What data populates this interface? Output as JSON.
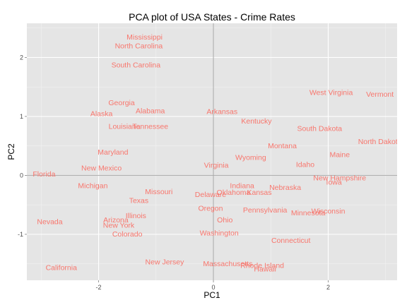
{
  "chart_data": {
    "type": "scatter",
    "title": "PCA plot of USA States - Crime Rates",
    "xlabel": "PC1",
    "ylabel": "PC2",
    "xlim": [
      -3.25,
      3.2
    ],
    "ylim": [
      -1.78,
      2.58
    ],
    "x_ticks": [
      -2,
      0,
      2
    ],
    "y_ticks": [
      -1,
      0,
      1,
      2
    ],
    "x_tick_labels": [
      "-2",
      "0",
      "2"
    ],
    "y_tick_labels": [
      "-1",
      "0",
      "1",
      "2"
    ],
    "grid": true,
    "reference_lines": {
      "x": 0,
      "y": 0
    },
    "label_color": "#f8766d",
    "panel_color": "#e5e5e5",
    "points": [
      {
        "label": "Mississippi",
        "x": -1.2,
        "y": 2.35
      },
      {
        "label": "North Carolina",
        "x": -1.3,
        "y": 2.2
      },
      {
        "label": "South Carolina",
        "x": -1.35,
        "y": 1.88
      },
      {
        "label": "Georgia",
        "x": -1.6,
        "y": 1.24
      },
      {
        "label": "Alabama",
        "x": -1.1,
        "y": 1.1
      },
      {
        "label": "Alaska",
        "x": -1.95,
        "y": 1.05
      },
      {
        "label": "Arkansas",
        "x": 0.15,
        "y": 1.09
      },
      {
        "label": "Louisiana",
        "x": -1.55,
        "y": 0.84
      },
      {
        "label": "Tennessee",
        "x": -1.1,
        "y": 0.84
      },
      {
        "label": "Kentucky",
        "x": 0.75,
        "y": 0.93
      },
      {
        "label": "West Virginia",
        "x": 2.05,
        "y": 1.41
      },
      {
        "label": "Vermont",
        "x": 2.9,
        "y": 1.38
      },
      {
        "label": "South Dakota",
        "x": 1.85,
        "y": 0.8
      },
      {
        "label": "North Dakota",
        "x": 2.9,
        "y": 0.58
      },
      {
        "label": "Montana",
        "x": 1.2,
        "y": 0.51
      },
      {
        "label": "Maine",
        "x": 2.2,
        "y": 0.36
      },
      {
        "label": "Maryland",
        "x": -1.75,
        "y": 0.4
      },
      {
        "label": "Wyoming",
        "x": 0.65,
        "y": 0.31
      },
      {
        "label": "Idaho",
        "x": 1.6,
        "y": 0.19
      },
      {
        "label": "Virginia",
        "x": 0.05,
        "y": 0.18
      },
      {
        "label": "New Mexico",
        "x": -1.95,
        "y": 0.13
      },
      {
        "label": "Florida",
        "x": -2.95,
        "y": 0.03
      },
      {
        "label": "New Hampshire",
        "x": 2.2,
        "y": -0.04
      },
      {
        "label": "Iowa",
        "x": 2.1,
        "y": -0.11
      },
      {
        "label": "Michigan",
        "x": -2.1,
        "y": -0.17
      },
      {
        "label": "Indiana",
        "x": 0.5,
        "y": -0.17
      },
      {
        "label": "Nebraska",
        "x": 1.25,
        "y": -0.2
      },
      {
        "label": "Missouri",
        "x": -0.95,
        "y": -0.27
      },
      {
        "label": "Oklahoma",
        "x": 0.35,
        "y": -0.28
      },
      {
        "label": "Kansas",
        "x": 0.8,
        "y": -0.28
      },
      {
        "label": "Delaware",
        "x": -0.05,
        "y": -0.32
      },
      {
        "label": "Texas",
        "x": -1.3,
        "y": -0.42
      },
      {
        "label": "Oregon",
        "x": -0.05,
        "y": -0.55
      },
      {
        "label": "Pennsylvania",
        "x": 0.9,
        "y": -0.58
      },
      {
        "label": "Wisconsin",
        "x": 2.0,
        "y": -0.6
      },
      {
        "label": "Minnesota",
        "x": 1.65,
        "y": -0.63
      },
      {
        "label": "Illinois",
        "x": -1.35,
        "y": -0.68
      },
      {
        "label": "Arizona",
        "x": -1.7,
        "y": -0.75
      },
      {
        "label": "Ohio",
        "x": 0.2,
        "y": -0.75
      },
      {
        "label": "Nevada",
        "x": -2.85,
        "y": -0.78
      },
      {
        "label": "New York",
        "x": -1.65,
        "y": -0.84
      },
      {
        "label": "Colorado",
        "x": -1.5,
        "y": -0.99
      },
      {
        "label": "Washington",
        "x": 0.1,
        "y": -0.97
      },
      {
        "label": "Connecticut",
        "x": 1.35,
        "y": -1.1
      },
      {
        "label": "New Jersey",
        "x": -0.85,
        "y": -1.46
      },
      {
        "label": "Massachusetts",
        "x": 0.25,
        "y": -1.49
      },
      {
        "label": "Rhode Island",
        "x": 0.85,
        "y": -1.52
      },
      {
        "label": "Hawaii",
        "x": 0.9,
        "y": -1.58
      },
      {
        "label": "California",
        "x": -2.65,
        "y": -1.56
      }
    ]
  }
}
